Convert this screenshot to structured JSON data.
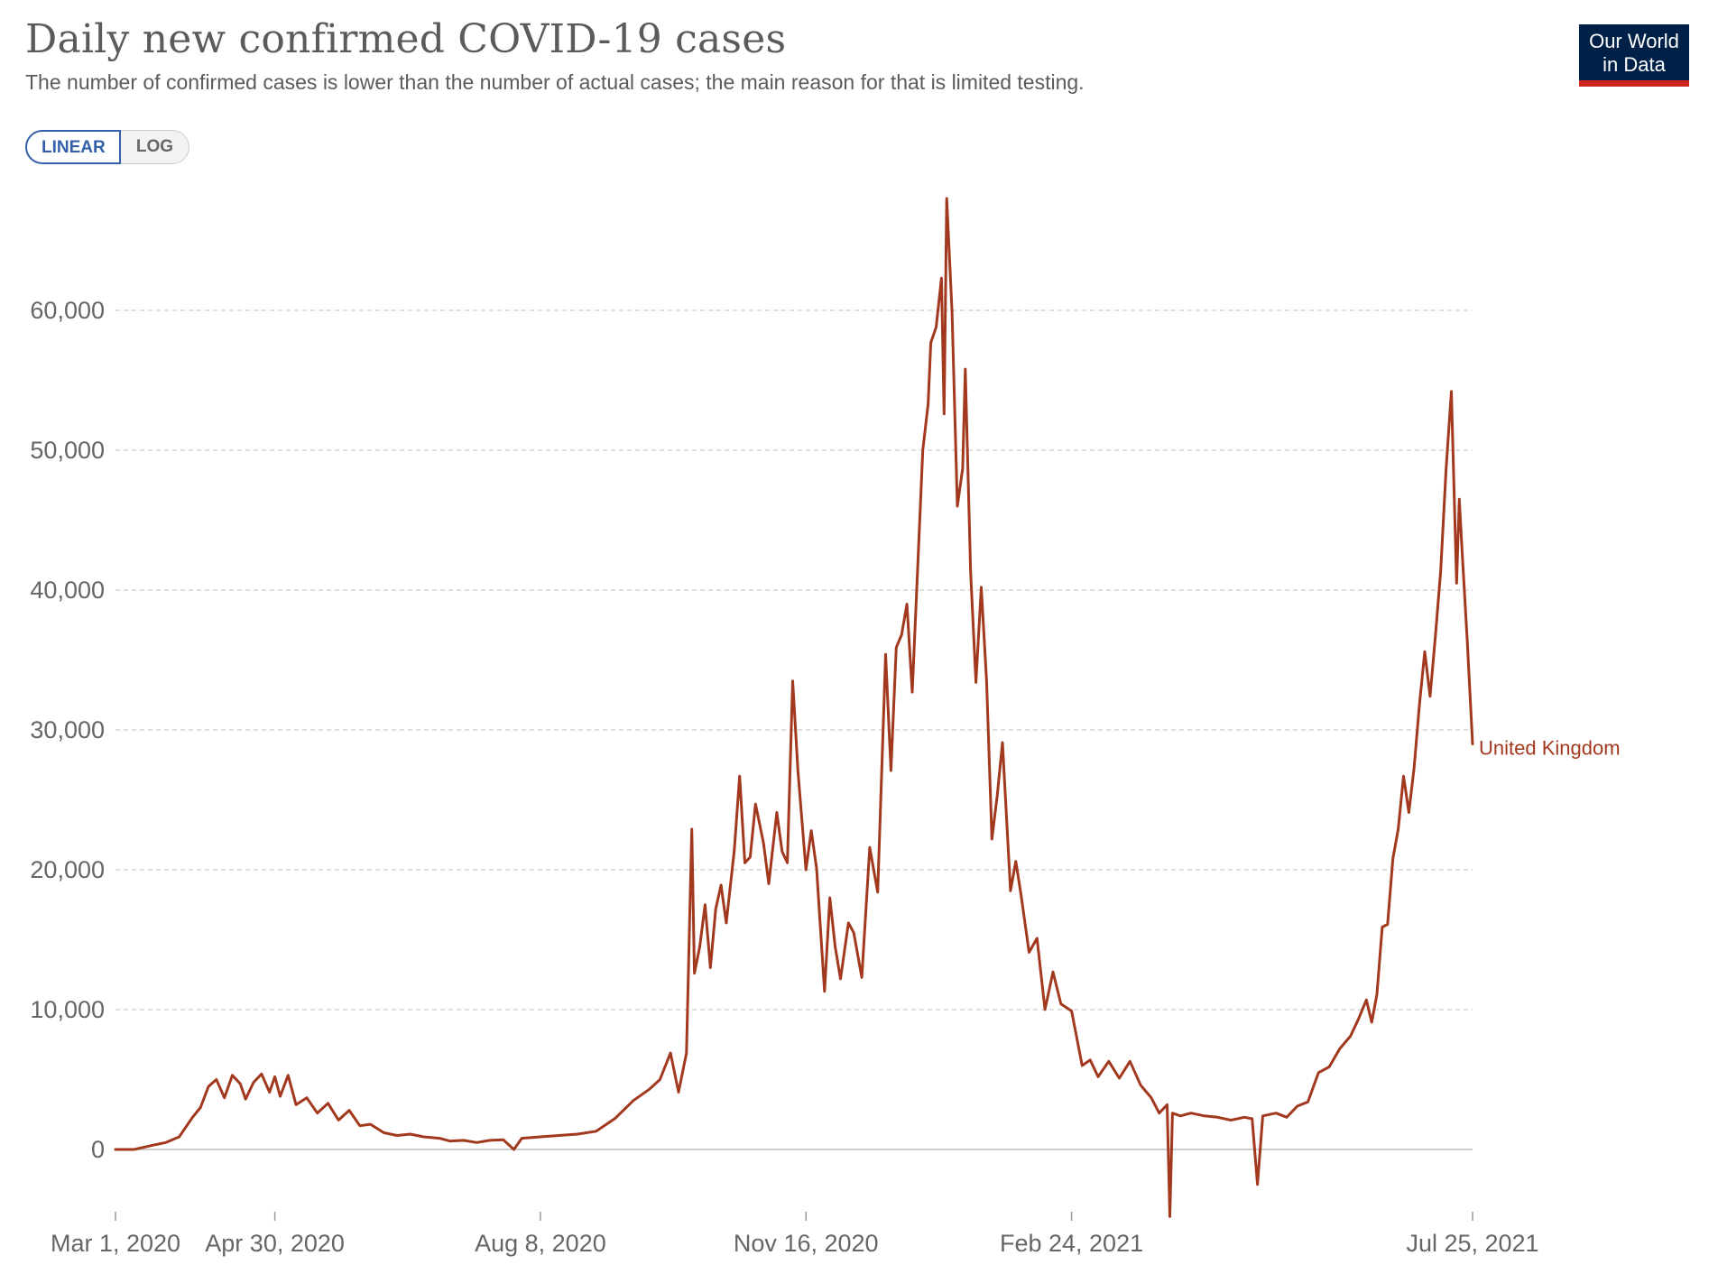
{
  "header": {
    "title": "Daily new confirmed COVID-19 cases",
    "subtitle": "The number of confirmed cases is lower than the number of actual cases; the main reason for that is limited testing."
  },
  "logo": {
    "line1": "Our World",
    "line2": "in Data",
    "bg_color": "#002147",
    "accent_color": "#ce261e"
  },
  "scale_toggle": {
    "linear_label": "LINEAR",
    "log_label": "LOG",
    "selected": "LINEAR"
  },
  "colors": {
    "series": "#a2391f",
    "grid": "#cccccc",
    "axis_text": "#666666"
  },
  "chart_data": {
    "type": "line",
    "title": "Daily new confirmed COVID-19 cases",
    "xlabel": "",
    "ylabel": "",
    "ylim": [
      -5000,
      68000
    ],
    "yticks": [
      0,
      10000,
      20000,
      30000,
      40000,
      50000,
      60000
    ],
    "ytick_labels": [
      "0",
      "10,000",
      "20,000",
      "30,000",
      "40,000",
      "50,000",
      "60,000"
    ],
    "xticks": [
      "2020-03-01",
      "2020-04-30",
      "2020-08-08",
      "2020-11-16",
      "2021-02-24",
      "2021-07-25"
    ],
    "xtick_labels": [
      "Mar 1, 2020",
      "Apr 30, 2020",
      "Aug 8, 2020",
      "Nov 16, 2020",
      "Feb 24, 2021",
      "Jul 25, 2021"
    ],
    "grid": true,
    "series": [
      {
        "name": "United Kingdom",
        "points": [
          [
            "2020-03-01",
            0
          ],
          [
            "2020-03-08",
            0
          ],
          [
            "2020-03-15",
            300
          ],
          [
            "2020-03-20",
            500
          ],
          [
            "2020-03-25",
            900
          ],
          [
            "2020-03-30",
            2300
          ],
          [
            "2020-04-02",
            3000
          ],
          [
            "2020-04-05",
            4500
          ],
          [
            "2020-04-08",
            5000
          ],
          [
            "2020-04-11",
            3700
          ],
          [
            "2020-04-14",
            5300
          ],
          [
            "2020-04-17",
            4700
          ],
          [
            "2020-04-19",
            3600
          ],
          [
            "2020-04-22",
            4800
          ],
          [
            "2020-04-25",
            5400
          ],
          [
            "2020-04-28",
            4100
          ],
          [
            "2020-04-30",
            5200
          ],
          [
            "2020-05-02",
            3800
          ],
          [
            "2020-05-05",
            5300
          ],
          [
            "2020-05-08",
            3200
          ],
          [
            "2020-05-12",
            3700
          ],
          [
            "2020-05-16",
            2600
          ],
          [
            "2020-05-20",
            3300
          ],
          [
            "2020-05-24",
            2100
          ],
          [
            "2020-05-28",
            2800
          ],
          [
            "2020-06-01",
            1700
          ],
          [
            "2020-06-05",
            1800
          ],
          [
            "2020-06-10",
            1200
          ],
          [
            "2020-06-15",
            1000
          ],
          [
            "2020-06-20",
            1100
          ],
          [
            "2020-06-25",
            900
          ],
          [
            "2020-07-01",
            800
          ],
          [
            "2020-07-05",
            600
          ],
          [
            "2020-07-10",
            650
          ],
          [
            "2020-07-15",
            500
          ],
          [
            "2020-07-20",
            650
          ],
          [
            "2020-07-25",
            700
          ],
          [
            "2020-07-29",
            0
          ],
          [
            "2020-08-01",
            800
          ],
          [
            "2020-08-08",
            900
          ],
          [
            "2020-08-15",
            1000
          ],
          [
            "2020-08-22",
            1100
          ],
          [
            "2020-08-29",
            1300
          ],
          [
            "2020-09-05",
            2200
          ],
          [
            "2020-09-12",
            3500
          ],
          [
            "2020-09-18",
            4300
          ],
          [
            "2020-09-22",
            5000
          ],
          [
            "2020-09-26",
            6900
          ],
          [
            "2020-09-29",
            4100
          ],
          [
            "2020-10-02",
            6900
          ],
          [
            "2020-10-04",
            22900
          ],
          [
            "2020-10-05",
            12600
          ],
          [
            "2020-10-07",
            14500
          ],
          [
            "2020-10-09",
            17500
          ],
          [
            "2020-10-11",
            13000
          ],
          [
            "2020-10-13",
            17200
          ],
          [
            "2020-10-15",
            18900
          ],
          [
            "2020-10-17",
            16200
          ],
          [
            "2020-10-20",
            21400
          ],
          [
            "2020-10-22",
            26700
          ],
          [
            "2020-10-24",
            20500
          ],
          [
            "2020-10-26",
            20900
          ],
          [
            "2020-10-28",
            24700
          ],
          [
            "2020-10-31",
            21900
          ],
          [
            "2020-11-02",
            19000
          ],
          [
            "2020-11-05",
            24100
          ],
          [
            "2020-11-07",
            21300
          ],
          [
            "2020-11-09",
            20500
          ],
          [
            "2020-11-11",
            33500
          ],
          [
            "2020-11-13",
            27000
          ],
          [
            "2020-11-16",
            20000
          ],
          [
            "2020-11-18",
            22800
          ],
          [
            "2020-11-20",
            20100
          ],
          [
            "2020-11-23",
            11300
          ],
          [
            "2020-11-25",
            18000
          ],
          [
            "2020-11-27",
            14500
          ],
          [
            "2020-11-29",
            12200
          ],
          [
            "2020-12-02",
            16200
          ],
          [
            "2020-12-04",
            15500
          ],
          [
            "2020-12-07",
            12300
          ],
          [
            "2020-12-10",
            21600
          ],
          [
            "2020-12-13",
            18400
          ],
          [
            "2020-12-16",
            35400
          ],
          [
            "2020-12-18",
            27100
          ],
          [
            "2020-12-20",
            35900
          ],
          [
            "2020-12-22",
            36800
          ],
          [
            "2020-12-24",
            39000
          ],
          [
            "2020-12-26",
            32700
          ],
          [
            "2020-12-28",
            41400
          ],
          [
            "2020-12-30",
            50000
          ],
          [
            "2021-01-01",
            53300
          ],
          [
            "2021-01-02",
            57700
          ],
          [
            "2021-01-04",
            58800
          ],
          [
            "2021-01-06",
            62300
          ],
          [
            "2021-01-07",
            52600
          ],
          [
            "2021-01-08",
            68000
          ],
          [
            "2021-01-10",
            59900
          ],
          [
            "2021-01-12",
            46000
          ],
          [
            "2021-01-14",
            48700
          ],
          [
            "2021-01-15",
            55800
          ],
          [
            "2021-01-17",
            41300
          ],
          [
            "2021-01-19",
            33400
          ],
          [
            "2021-01-21",
            40200
          ],
          [
            "2021-01-23",
            33500
          ],
          [
            "2021-01-25",
            22200
          ],
          [
            "2021-01-27",
            25300
          ],
          [
            "2021-01-29",
            29100
          ],
          [
            "2021-02-01",
            18500
          ],
          [
            "2021-02-03",
            20600
          ],
          [
            "2021-02-05",
            18200
          ],
          [
            "2021-02-08",
            14100
          ],
          [
            "2021-02-11",
            15100
          ],
          [
            "2021-02-14",
            10000
          ],
          [
            "2021-02-17",
            12700
          ],
          [
            "2021-02-20",
            10400
          ],
          [
            "2021-02-24",
            9900
          ],
          [
            "2021-02-28",
            6000
          ],
          [
            "2021-03-03",
            6400
          ],
          [
            "2021-03-06",
            5200
          ],
          [
            "2021-03-10",
            6300
          ],
          [
            "2021-03-14",
            5100
          ],
          [
            "2021-03-18",
            6300
          ],
          [
            "2021-03-22",
            4600
          ],
          [
            "2021-03-26",
            3700
          ],
          [
            "2021-03-29",
            2600
          ],
          [
            "2021-04-01",
            3200
          ],
          [
            "2021-04-02",
            -4800
          ],
          [
            "2021-04-03",
            2600
          ],
          [
            "2021-04-06",
            2400
          ],
          [
            "2021-04-10",
            2600
          ],
          [
            "2021-04-15",
            2400
          ],
          [
            "2021-04-20",
            2300
          ],
          [
            "2021-04-25",
            2100
          ],
          [
            "2021-04-30",
            2300
          ],
          [
            "2021-05-03",
            2200
          ],
          [
            "2021-05-05",
            -2500
          ],
          [
            "2021-05-07",
            2400
          ],
          [
            "2021-05-12",
            2600
          ],
          [
            "2021-05-16",
            2300
          ],
          [
            "2021-05-20",
            3100
          ],
          [
            "2021-05-24",
            3400
          ],
          [
            "2021-05-28",
            5500
          ],
          [
            "2021-06-01",
            5900
          ],
          [
            "2021-06-05",
            7200
          ],
          [
            "2021-06-09",
            8100
          ],
          [
            "2021-06-12",
            9300
          ],
          [
            "2021-06-15",
            10700
          ],
          [
            "2021-06-17",
            9100
          ],
          [
            "2021-06-19",
            11100
          ],
          [
            "2021-06-21",
            15900
          ],
          [
            "2021-06-23",
            16100
          ],
          [
            "2021-06-25",
            20800
          ],
          [
            "2021-06-27",
            22900
          ],
          [
            "2021-06-29",
            26700
          ],
          [
            "2021-07-01",
            24100
          ],
          [
            "2021-07-03",
            27300
          ],
          [
            "2021-07-05",
            31800
          ],
          [
            "2021-07-07",
            35600
          ],
          [
            "2021-07-09",
            32400
          ],
          [
            "2021-07-11",
            36700
          ],
          [
            "2021-07-13",
            41400
          ],
          [
            "2021-07-15",
            48600
          ],
          [
            "2021-07-17",
            54200
          ],
          [
            "2021-07-19",
            40500
          ],
          [
            "2021-07-20",
            46500
          ],
          [
            "2021-07-21",
            43000
          ],
          [
            "2021-07-23",
            36400
          ],
          [
            "2021-07-25",
            29000
          ]
        ]
      }
    ]
  }
}
